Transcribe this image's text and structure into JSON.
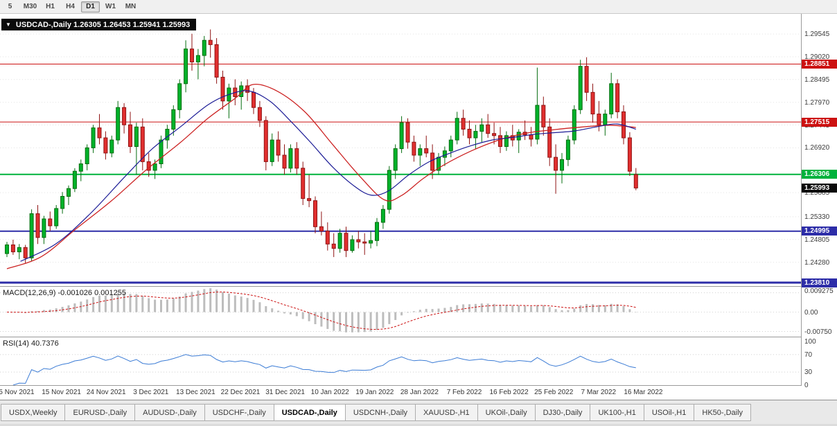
{
  "toolbar": {
    "timeframes": [
      {
        "label": "5",
        "active": false
      },
      {
        "label": "M30",
        "active": false
      },
      {
        "label": "H1",
        "active": false
      },
      {
        "label": "H4",
        "active": false
      },
      {
        "label": "D1",
        "active": true
      },
      {
        "label": "W1",
        "active": false
      },
      {
        "label": "MN",
        "active": false
      }
    ]
  },
  "chart": {
    "title_line": "USDCAD-,Daily 1.26305 1.26453 1.25941 1.25993"
  },
  "indicators": {
    "macd": {
      "label": "MACD(12,26,9) -0.001026 0.001255",
      "axis_labels": [
        {
          "text": "0.009275",
          "value": null,
          "pos": "top"
        },
        {
          "text": "0.00",
          "value": 0
        },
        {
          "text": "-0.00750",
          "value": -0.0075
        }
      ]
    },
    "rsi": {
      "label": "RSI(14) 40.7376",
      "value": 40.7376,
      "levels": [
        70,
        30
      ],
      "axis_labels": [
        {
          "text": "100",
          "value": 100
        },
        {
          "text": "70",
          "value": 70
        },
        {
          "text": "30",
          "value": 30
        },
        {
          "text": "0",
          "value": 0
        }
      ]
    }
  },
  "time_axis": [
    "5 Nov 2021",
    "15 Nov 2021",
    "24 Nov 2021",
    "3 Dec 2021",
    "13 Dec 2021",
    "22 Dec 2021",
    "31 Dec 2021",
    "10 Jan 2022",
    "19 Jan 2022",
    "28 Jan 2022",
    "7 Feb 2022",
    "16 Feb 2022",
    "25 Feb 2022",
    "7 Mar 2022",
    "16 Mar 2022"
  ],
  "tabbar": {
    "tabs": [
      "USDX,Weekly",
      "EURUSD-,Daily",
      "AUDUSD-,Daily",
      "USDCHF-,Daily",
      "USDCAD-,Daily",
      "USDCNH-,Daily",
      "XAUUSD-,H1",
      "UKOil-,Daily",
      "DJ30-,Daily",
      "UK100-,H1",
      "USOil-,H1",
      "HK50-,Daily"
    ],
    "active": "USDCAD-,Daily"
  },
  "chart_data": {
    "type": "candlestick",
    "symbol": "USDCAD-",
    "timeframe": "Daily",
    "current": {
      "open": 1.26305,
      "high": 1.26453,
      "low": 1.25941,
      "close": 1.25993
    },
    "y_range": {
      "top": 1.3001,
      "bottom": 1.2373
    },
    "price_ticks": [
      "1.29545",
      "1.29020",
      "1.28495",
      "1.27970",
      "1.27445",
      "1.26920",
      "1.25885",
      "1.25330",
      "1.24805",
      "1.24280"
    ],
    "hlines": [
      {
        "price": 1.28851,
        "color": "#cc1111",
        "width": 1,
        "label": "1.28851"
      },
      {
        "price": 1.27515,
        "color": "#cc1111",
        "width": 1,
        "label": "1.27515"
      },
      {
        "price": 1.26306,
        "color": "#00b23c",
        "width": 2,
        "label": "1.26306"
      },
      {
        "price": 1.24995,
        "color": "#2d2da8",
        "width": 2,
        "label": "1.24995"
      },
      {
        "price": 1.2381,
        "color": "#2d2da8",
        "width": 3,
        "label": "1.23810"
      }
    ],
    "price_badge": {
      "label": "1.25993",
      "price": 1.25993,
      "bg": "#0a0a0a"
    },
    "colors": {
      "bull": "#00b22a",
      "bull_edge": "#056d0f",
      "bear": "#e12f2f",
      "bear_edge": "#8f1313",
      "ma_slow": "#cc2222",
      "ma_fast": "#1c1c96",
      "macd_hist": "#bdbdbd",
      "macd_signal": "#cc1111",
      "rsi_line": "#3a7bd5",
      "grid": "#e3e3e3"
    },
    "candles": [
      [
        1.2448,
        1.2475,
        1.244,
        1.2468
      ],
      [
        1.2468,
        1.248,
        1.2445,
        1.2452
      ],
      [
        1.2452,
        1.247,
        1.2435,
        1.2462
      ],
      [
        1.2462,
        1.2468,
        1.2425,
        1.2438
      ],
      [
        1.2438,
        1.255,
        1.243,
        1.254
      ],
      [
        1.254,
        1.256,
        1.247,
        1.2485
      ],
      [
        1.2485,
        1.2535,
        1.247,
        1.2528
      ],
      [
        1.2528,
        1.2545,
        1.25,
        1.2512
      ],
      [
        1.2512,
        1.256,
        1.2505,
        1.2552
      ],
      [
        1.2552,
        1.259,
        1.254,
        1.258
      ],
      [
        1.258,
        1.2605,
        1.256,
        1.2598
      ],
      [
        1.2598,
        1.2645,
        1.259,
        1.2638
      ],
      [
        1.2638,
        1.2665,
        1.2615,
        1.2655
      ],
      [
        1.2655,
        1.27,
        1.264,
        1.2692
      ],
      [
        1.2692,
        1.2745,
        1.268,
        1.2738
      ],
      [
        1.2738,
        1.277,
        1.27,
        1.2715
      ],
      [
        1.2715,
        1.273,
        1.2665,
        1.268
      ],
      [
        1.268,
        1.272,
        1.267,
        1.271
      ],
      [
        1.271,
        1.28,
        1.27,
        1.2785
      ],
      [
        1.2785,
        1.2795,
        1.2725,
        1.2745
      ],
      [
        1.2745,
        1.2775,
        1.268,
        1.2695
      ],
      [
        1.2695,
        1.275,
        1.263,
        1.274
      ],
      [
        1.274,
        1.276,
        1.264,
        1.266
      ],
      [
        1.266,
        1.268,
        1.2625,
        1.264
      ],
      [
        1.264,
        1.2665,
        1.262,
        1.2655
      ],
      [
        1.2655,
        1.272,
        1.2645,
        1.271
      ],
      [
        1.271,
        1.2745,
        1.269,
        1.2735
      ],
      [
        1.2735,
        1.279,
        1.272,
        1.278
      ],
      [
        1.278,
        1.285,
        1.276,
        1.284
      ],
      [
        1.284,
        1.294,
        1.282,
        1.292
      ],
      [
        1.292,
        1.2955,
        1.287,
        1.289
      ],
      [
        1.289,
        1.292,
        1.285,
        1.2905
      ],
      [
        1.2905,
        1.295,
        1.288,
        1.294
      ],
      [
        1.294,
        1.2965,
        1.29,
        1.293
      ],
      [
        1.293,
        1.2945,
        1.284,
        1.2855
      ],
      [
        1.2855,
        1.287,
        1.278,
        1.28
      ],
      [
        1.28,
        1.284,
        1.276,
        1.283
      ],
      [
        1.283,
        1.285,
        1.279,
        1.281
      ],
      [
        1.281,
        1.2845,
        1.278,
        1.2835
      ],
      [
        1.2835,
        1.285,
        1.28,
        1.282
      ],
      [
        1.282,
        1.283,
        1.277,
        1.2785
      ],
      [
        1.2785,
        1.28,
        1.274,
        1.2755
      ],
      [
        1.2755,
        1.2765,
        1.264,
        1.266
      ],
      [
        1.266,
        1.2725,
        1.265,
        1.271
      ],
      [
        1.271,
        1.273,
        1.266,
        1.2675
      ],
      [
        1.2675,
        1.27,
        1.263,
        1.2645
      ],
      [
        1.2645,
        1.27,
        1.2635,
        1.269
      ],
      [
        1.269,
        1.2705,
        1.263,
        1.2645
      ],
      [
        1.2645,
        1.266,
        1.256,
        1.2575
      ],
      [
        1.2575,
        1.263,
        1.2555,
        1.257
      ],
      [
        1.257,
        1.258,
        1.2495,
        1.251
      ],
      [
        1.251,
        1.2545,
        1.249,
        1.25
      ],
      [
        1.25,
        1.252,
        1.2455,
        1.247
      ],
      [
        1.247,
        1.2495,
        1.244,
        1.246
      ],
      [
        1.246,
        1.2505,
        1.245,
        1.2495
      ],
      [
        1.2495,
        1.251,
        1.244,
        1.2455
      ],
      [
        1.2455,
        1.249,
        1.245,
        1.248
      ],
      [
        1.248,
        1.25,
        1.246,
        1.2475
      ],
      [
        1.2475,
        1.2495,
        1.2445,
        1.2472
      ],
      [
        1.2472,
        1.25,
        1.246,
        1.2478
      ],
      [
        1.2478,
        1.253,
        1.2465,
        1.252
      ],
      [
        1.252,
        1.256,
        1.2505,
        1.255
      ],
      [
        1.255,
        1.265,
        1.254,
        1.264
      ],
      [
        1.264,
        1.27,
        1.262,
        1.269
      ],
      [
        1.269,
        1.2765,
        1.268,
        1.275
      ],
      [
        1.275,
        1.276,
        1.269,
        1.2705
      ],
      [
        1.2705,
        1.272,
        1.266,
        1.2675
      ],
      [
        1.2675,
        1.27,
        1.265,
        1.269
      ],
      [
        1.269,
        1.272,
        1.267,
        1.268
      ],
      [
        1.268,
        1.27,
        1.262,
        1.264
      ],
      [
        1.264,
        1.268,
        1.263,
        1.267
      ],
      [
        1.267,
        1.2695,
        1.265,
        1.2685
      ],
      [
        1.2685,
        1.272,
        1.267,
        1.271
      ],
      [
        1.271,
        1.2775,
        1.27,
        1.276
      ],
      [
        1.276,
        1.278,
        1.272,
        1.2735
      ],
      [
        1.2735,
        1.2755,
        1.27,
        1.2715
      ],
      [
        1.2715,
        1.2745,
        1.269,
        1.273
      ],
      [
        1.273,
        1.276,
        1.2705,
        1.2745
      ],
      [
        1.2745,
        1.277,
        1.2715,
        1.2725
      ],
      [
        1.2725,
        1.275,
        1.27,
        1.272
      ],
      [
        1.272,
        1.274,
        1.268,
        1.2695
      ],
      [
        1.2695,
        1.273,
        1.2685,
        1.272
      ],
      [
        1.272,
        1.2745,
        1.2695,
        1.271
      ],
      [
        1.271,
        1.2735,
        1.268,
        1.2728
      ],
      [
        1.2728,
        1.2755,
        1.271,
        1.2722
      ],
      [
        1.2722,
        1.274,
        1.2695,
        1.2712
      ],
      [
        1.2712,
        1.2877,
        1.27,
        1.279
      ],
      [
        1.279,
        1.281,
        1.272,
        1.274
      ],
      [
        1.274,
        1.276,
        1.265,
        1.267
      ],
      [
        1.267,
        1.27,
        1.2586,
        1.264
      ],
      [
        1.264,
        1.268,
        1.261,
        1.2665
      ],
      [
        1.2665,
        1.272,
        1.265,
        1.271
      ],
      [
        1.271,
        1.279,
        1.27,
        1.278
      ],
      [
        1.278,
        1.2895,
        1.277,
        1.288
      ],
      [
        1.288,
        1.2901,
        1.28,
        1.282
      ],
      [
        1.282,
        1.284,
        1.275,
        1.277
      ],
      [
        1.277,
        1.28,
        1.273,
        1.2745
      ],
      [
        1.2745,
        1.278,
        1.272,
        1.277
      ],
      [
        1.277,
        1.2865,
        1.276,
        1.284
      ],
      [
        1.284,
        1.285,
        1.276,
        1.2775
      ],
      [
        1.2775,
        1.279,
        1.27,
        1.2715
      ],
      [
        1.2715,
        1.2728,
        1.2627,
        1.2638
      ],
      [
        1.26305,
        1.26453,
        1.25941,
        1.25993
      ]
    ],
    "ma_slow_points": [
      [
        0,
        1.2413
      ],
      [
        5.6,
        1.2441
      ],
      [
        11.2,
        1.2505
      ],
      [
        16.9,
        1.2569
      ],
      [
        22.5,
        1.264
      ],
      [
        28.1,
        1.2704
      ],
      [
        32.6,
        1.276
      ],
      [
        37.1,
        1.2807
      ],
      [
        39.9,
        1.2838
      ],
      [
        43.8,
        1.2823
      ],
      [
        48.3,
        1.2775
      ],
      [
        52.8,
        1.27
      ],
      [
        57.3,
        1.2625
      ],
      [
        61.2,
        1.2572
      ],
      [
        64,
        1.2582
      ],
      [
        67.4,
        1.262
      ],
      [
        70.8,
        1.2652
      ],
      [
        75.3,
        1.2685
      ],
      [
        79.8,
        1.271
      ],
      [
        84.3,
        1.2726
      ],
      [
        88.8,
        1.2734
      ],
      [
        93.3,
        1.274
      ],
      [
        97.8,
        1.2744
      ],
      [
        102,
        1.2739
      ]
    ],
    "ma_fast_points": [
      [
        2.2,
        1.243
      ],
      [
        7.9,
        1.247
      ],
      [
        13.5,
        1.254
      ],
      [
        19.1,
        1.2625
      ],
      [
        23.6,
        1.269
      ],
      [
        28.1,
        1.274
      ],
      [
        32.6,
        1.2791
      ],
      [
        36,
        1.2815
      ],
      [
        39.3,
        1.2823
      ],
      [
        42.7,
        1.2799
      ],
      [
        46.1,
        1.2752
      ],
      [
        49.4,
        1.2702
      ],
      [
        52.8,
        1.2648
      ],
      [
        56.2,
        1.2605
      ],
      [
        59,
        1.2583
      ],
      [
        61.8,
        1.2592
      ],
      [
        65.2,
        1.263
      ],
      [
        68.5,
        1.266
      ],
      [
        71.9,
        1.268
      ],
      [
        75.3,
        1.2697
      ],
      [
        78.7,
        1.271
      ],
      [
        82,
        1.2716
      ],
      [
        85.4,
        1.2723
      ],
      [
        88.8,
        1.2727
      ],
      [
        92.1,
        1.2731
      ],
      [
        95.5,
        1.274
      ],
      [
        98.9,
        1.2747
      ],
      [
        102,
        1.2735
      ]
    ]
  }
}
